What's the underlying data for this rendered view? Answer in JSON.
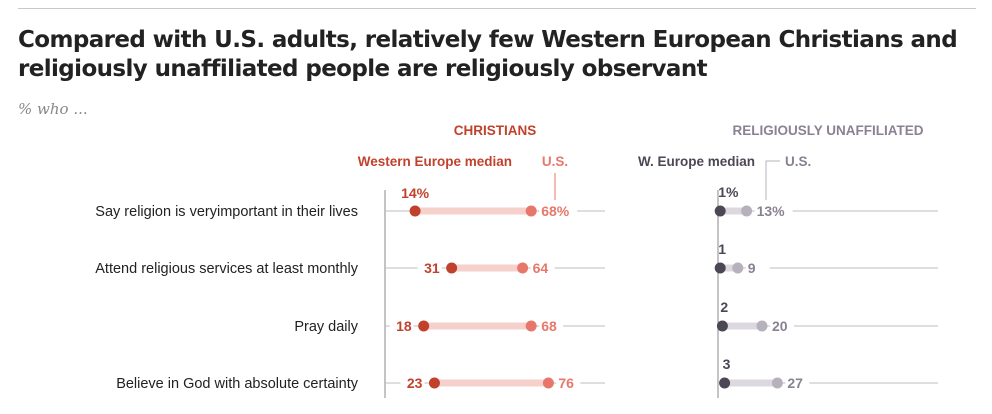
{
  "title": "Compared with U.S. adults, relatively few Western European Christians and religiously unaffiliated people are religiously observant",
  "subtitle": "% who ...",
  "colors": {
    "christian_europe": "#c2412d",
    "christian_us": "#e8776b",
    "christian_bar": "#f6d1cc",
    "unaff_europe": "#4d4654",
    "unaff_us": "#b7b1bd",
    "unaff_bar": "#dcd8e0",
    "unaff_text": "#8a8292",
    "gridline": "#bdbdbd",
    "axis": "#888888"
  },
  "chart_data": [
    {
      "type": "dot",
      "group": "christians",
      "group_label": "CHRISTIANS",
      "series": [
        {
          "name": "Western Europe median",
          "values": [
            14,
            31,
            18,
            23
          ]
        },
        {
          "name": "U.S.",
          "values": [
            68,
            64,
            68,
            76
          ]
        }
      ],
      "categories": [
        "Say religion is veryimportant in their lives",
        "Attend religious services at least monthly",
        "Pray daily",
        "Believe in God with absolute certainty"
      ],
      "europe_labels": [
        "14%",
        "31",
        "18",
        "23"
      ],
      "us_labels": [
        "68%",
        "64",
        "68",
        "76"
      ],
      "xlim": [
        0,
        100
      ]
    },
    {
      "type": "dot",
      "group": "unaffiliated",
      "group_label": "RELIGIOUSLY UNAFFILIATED",
      "series": [
        {
          "name": "W. Europe median",
          "values": [
            1,
            1,
            2,
            3
          ]
        },
        {
          "name": "U.S.",
          "values": [
            13,
            9,
            20,
            27
          ]
        }
      ],
      "categories": [
        "Say religion is veryimportant in their lives",
        "Attend religious services at least monthly",
        "Pray daily",
        "Believe in God with absolute certainty"
      ],
      "europe_labels": [
        "1%",
        "1",
        "2",
        "3"
      ],
      "us_labels": [
        "13%",
        "9",
        "20",
        "27"
      ],
      "xlim": [
        0,
        100
      ]
    }
  ]
}
